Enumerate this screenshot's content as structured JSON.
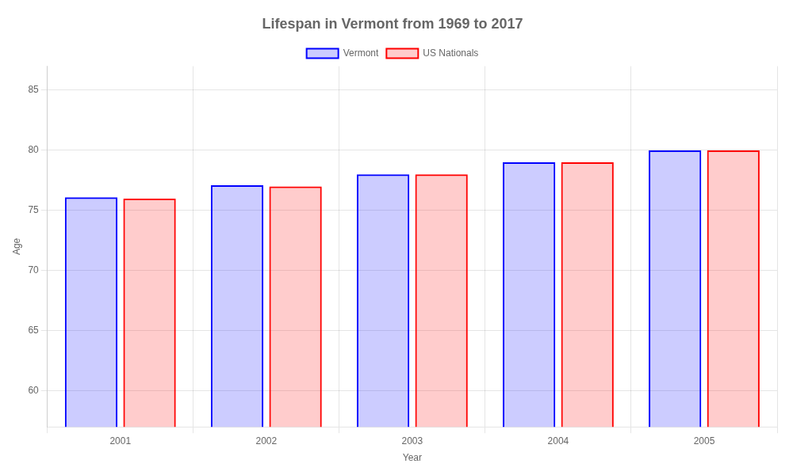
{
  "chart_data": {
    "type": "bar",
    "title": "Lifespan in Vermont from 1969 to 2017",
    "x_label": "Year",
    "y_label": "Age",
    "categories": [
      "2001",
      "2002",
      "2003",
      "2004",
      "2005"
    ],
    "series": [
      {
        "name": "Vermont",
        "color": "#0000ff",
        "values": [
          76.1,
          77.1,
          78.0,
          79.0,
          80.0
        ]
      },
      {
        "name": "US Nationals",
        "color": "#ff0000",
        "values": [
          76.0,
          77.0,
          78.0,
          79.0,
          80.0
        ]
      }
    ],
    "ylim": [
      57,
      87
    ],
    "yticks": [
      60,
      65,
      70,
      75,
      80,
      85
    ],
    "grid": true,
    "legend": "top"
  }
}
